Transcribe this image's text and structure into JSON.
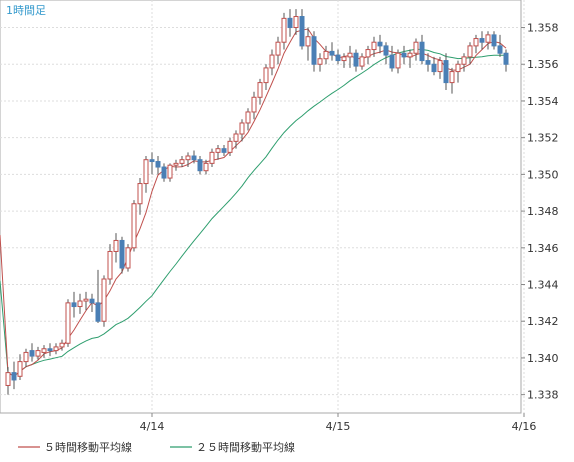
{
  "chart_data": {
    "type": "candlestick",
    "period_label": "1時間足",
    "ylim": [
      1.337,
      1.3595
    ],
    "y_ticks": [
      "1.358",
      "1.356",
      "1.354",
      "1.352",
      "1.350",
      "1.348",
      "1.346",
      "1.344",
      "1.342",
      "1.340",
      "1.338"
    ],
    "x_ticks": [
      {
        "label": "4/14",
        "index": 24
      },
      {
        "label": "4/15",
        "index": 55
      },
      {
        "label": "4/16",
        "index": 86
      }
    ],
    "legend": [
      {
        "label": "５時間移動平均線",
        "color": "#c0504d"
      },
      {
        "label": "２５時間移動平均線",
        "color": "#2e9e6e"
      }
    ],
    "up_color": "#ffffff",
    "down_color": "#4a7fb5",
    "candles": [
      [
        1.3385,
        1.3395,
        1.338,
        1.3392
      ],
      [
        1.3392,
        1.3398,
        1.3383,
        1.3388
      ],
      [
        1.339,
        1.3402,
        1.3388,
        1.3398
      ],
      [
        1.3398,
        1.3405,
        1.3395,
        1.3403
      ],
      [
        1.3404,
        1.3408,
        1.3398,
        1.3401
      ],
      [
        1.3401,
        1.3406,
        1.3399,
        1.3404
      ],
      [
        1.3403,
        1.3407,
        1.34,
        1.3405
      ],
      [
        1.3405,
        1.3408,
        1.3401,
        1.3404
      ],
      [
        1.3404,
        1.3408,
        1.3402,
        1.3406
      ],
      [
        1.3406,
        1.341,
        1.3404,
        1.3408
      ],
      [
        1.3408,
        1.3432,
        1.3406,
        1.343
      ],
      [
        1.343,
        1.3436,
        1.3422,
        1.3428
      ],
      [
        1.3428,
        1.3435,
        1.3424,
        1.3431
      ],
      [
        1.3431,
        1.3436,
        1.3426,
        1.3432
      ],
      [
        1.3432,
        1.3435,
        1.3425,
        1.343
      ],
      [
        1.343,
        1.3448,
        1.3419,
        1.342
      ],
      [
        1.342,
        1.3445,
        1.3417,
        1.3443
      ],
      [
        1.3443,
        1.3462,
        1.344,
        1.3458
      ],
      [
        1.3458,
        1.3468,
        1.3452,
        1.3464
      ],
      [
        1.3464,
        1.3466,
        1.3446,
        1.3449
      ],
      [
        1.3449,
        1.3462,
        1.3447,
        1.346
      ],
      [
        1.346,
        1.3486,
        1.3458,
        1.3484
      ],
      [
        1.3484,
        1.3498,
        1.3478,
        1.3495
      ],
      [
        1.3495,
        1.351,
        1.349,
        1.3508
      ],
      [
        1.3508,
        1.3512,
        1.35,
        1.3507
      ],
      [
        1.3507,
        1.351,
        1.35,
        1.3504
      ],
      [
        1.3504,
        1.3506,
        1.3496,
        1.3498
      ],
      [
        1.3498,
        1.3506,
        1.3496,
        1.3505
      ],
      [
        1.3505,
        1.3508,
        1.3502,
        1.3506
      ],
      [
        1.3506,
        1.351,
        1.3504,
        1.3508
      ],
      [
        1.3508,
        1.3512,
        1.3504,
        1.351
      ],
      [
        1.351,
        1.3513,
        1.3506,
        1.3508
      ],
      [
        1.3508,
        1.351,
        1.35,
        1.3502
      ],
      [
        1.3502,
        1.3508,
        1.35,
        1.3506
      ],
      [
        1.3506,
        1.3514,
        1.3504,
        1.3512
      ],
      [
        1.3512,
        1.3516,
        1.3508,
        1.3514
      ],
      [
        1.3514,
        1.3516,
        1.351,
        1.3512
      ],
      [
        1.3512,
        1.352,
        1.351,
        1.3518
      ],
      [
        1.3518,
        1.3524,
        1.3514,
        1.3522
      ],
      [
        1.3522,
        1.353,
        1.3518,
        1.3528
      ],
      [
        1.3528,
        1.3536,
        1.3524,
        1.3534
      ],
      [
        1.3534,
        1.3545,
        1.353,
        1.3542
      ],
      [
        1.3542,
        1.3552,
        1.3538,
        1.355
      ],
      [
        1.355,
        1.356,
        1.3546,
        1.3558
      ],
      [
        1.3558,
        1.3568,
        1.3554,
        1.3565
      ],
      [
        1.3565,
        1.3575,
        1.356,
        1.3572
      ],
      [
        1.3572,
        1.3588,
        1.3568,
        1.3585
      ],
      [
        1.3585,
        1.359,
        1.3575,
        1.358
      ],
      [
        1.358,
        1.359,
        1.3576,
        1.3586
      ],
      [
        1.3586,
        1.359,
        1.3568,
        1.357
      ],
      [
        1.357,
        1.358,
        1.3562,
        1.3575
      ],
      [
        1.3575,
        1.3578,
        1.3556,
        1.356
      ],
      [
        1.356,
        1.3566,
        1.3556,
        1.3563
      ],
      [
        1.3563,
        1.357,
        1.356,
        1.3567
      ],
      [
        1.3567,
        1.3572,
        1.3562,
        1.3565
      ],
      [
        1.3565,
        1.3568,
        1.356,
        1.3562
      ],
      [
        1.3562,
        1.3566,
        1.3558,
        1.3564
      ],
      [
        1.3564,
        1.357,
        1.3558,
        1.3566
      ],
      [
        1.3566,
        1.3568,
        1.3556,
        1.3559
      ],
      [
        1.3559,
        1.3566,
        1.3557,
        1.3564
      ],
      [
        1.3564,
        1.357,
        1.356,
        1.3568
      ],
      [
        1.3568,
        1.3575,
        1.3564,
        1.3572
      ],
      [
        1.3572,
        1.3576,
        1.3566,
        1.357
      ],
      [
        1.357,
        1.3572,
        1.356,
        1.3565
      ],
      [
        1.3565,
        1.357,
        1.3556,
        1.3558
      ],
      [
        1.3558,
        1.3568,
        1.3555,
        1.3566
      ],
      [
        1.3566,
        1.357,
        1.356,
        1.3564
      ],
      [
        1.3564,
        1.3568,
        1.3558,
        1.3566
      ],
      [
        1.3566,
        1.3574,
        1.3562,
        1.3572
      ],
      [
        1.3572,
        1.3576,
        1.356,
        1.3562
      ],
      [
        1.3562,
        1.3566,
        1.3556,
        1.356
      ],
      [
        1.356,
        1.3564,
        1.3554,
        1.3556
      ],
      [
        1.3556,
        1.3564,
        1.3552,
        1.3562
      ],
      [
        1.3562,
        1.3566,
        1.3546,
        1.355
      ],
      [
        1.355,
        1.3558,
        1.3544,
        1.3556
      ],
      [
        1.3556,
        1.3562,
        1.355,
        1.356
      ],
      [
        1.356,
        1.3566,
        1.3556,
        1.3564
      ],
      [
        1.3564,
        1.3572,
        1.356,
        1.357
      ],
      [
        1.357,
        1.3576,
        1.3566,
        1.3574
      ],
      [
        1.3574,
        1.3578,
        1.3568,
        1.3572
      ],
      [
        1.3572,
        1.3578,
        1.3568,
        1.3576
      ],
      [
        1.3576,
        1.3578,
        1.3568,
        1.357
      ],
      [
        1.357,
        1.3576,
        1.3564,
        1.3566
      ],
      [
        1.3566,
        1.3568,
        1.3556,
        1.356
      ]
    ]
  }
}
